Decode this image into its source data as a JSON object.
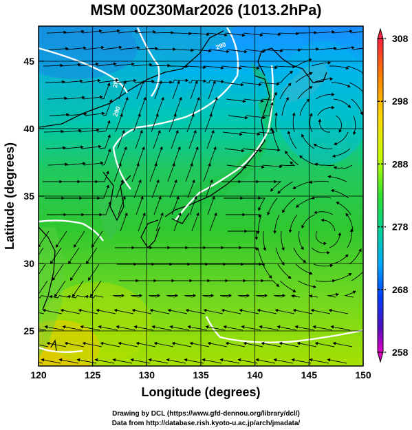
{
  "title": "MSM 00Z30Mar2026 (1013.2hPa)",
  "xlabel": "Longitude (degrees)",
  "ylabel": "Latitude  (degrees)",
  "x_ticks": [
    "120",
    "125",
    "130",
    "135",
    "140",
    "145",
    "150"
  ],
  "y_ticks": [
    "25",
    "30",
    "35",
    "40",
    "45"
  ],
  "colorbar": {
    "ticks": [
      "308",
      "298",
      "288",
      "278",
      "268",
      "258"
    ],
    "colors": [
      "#ff2060",
      "#ff8a00",
      "#ffd000",
      "#e8ff00",
      "#80ff00",
      "#00d040",
      "#00d0a0",
      "#00a0ff",
      "#0040ff",
      "#4000c0",
      "#c000c0"
    ]
  },
  "contour_labels": [
    "290",
    "290",
    "280"
  ],
  "credits": {
    "line1": "Drawing by DCL (https://www.gfd-dennou.org/library/dcl/)",
    "line2": "Data from http://database.rish.kyoto-u.ac.jp/arch/jmadata/"
  },
  "chart_data": {
    "type": "heatmap",
    "title": "MSM 00Z30Mar2026 (1013.2hPa)",
    "xlabel": "Longitude (degrees)",
    "ylabel": "Latitude  (degrees)",
    "xlim": [
      120,
      150
    ],
    "ylim": [
      22.4,
      47.6
    ],
    "color_range": [
      258,
      308
    ],
    "overlay": "streamlines",
    "grid": true
  }
}
